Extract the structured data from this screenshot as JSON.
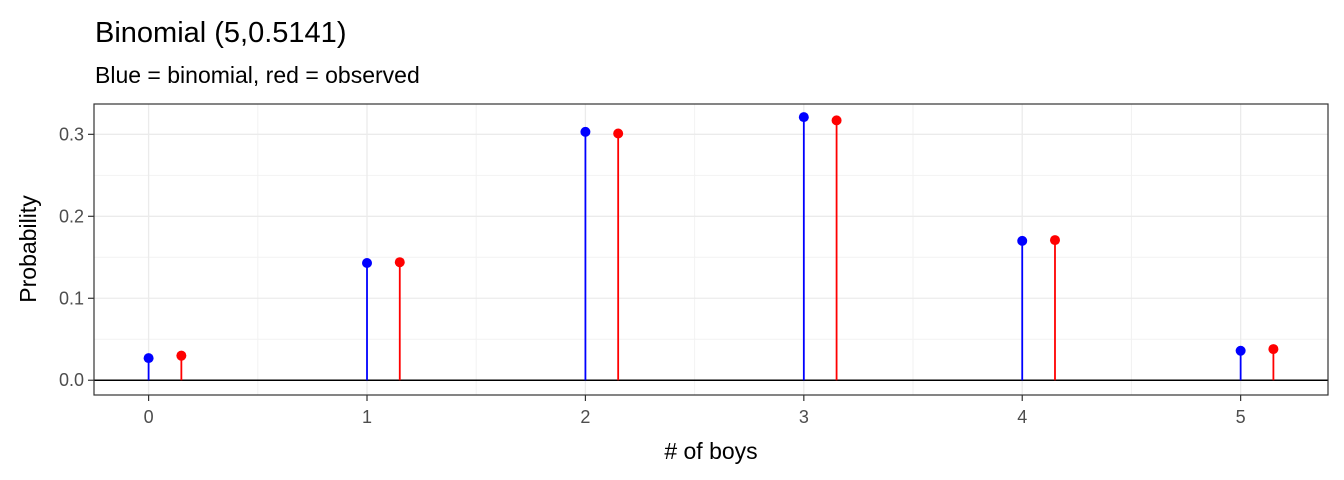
{
  "chart_data": {
    "type": "lollipop",
    "title": "Binomial (5,0.5141)",
    "subtitle": "Blue = binomial, red = observed",
    "xlabel": "# of boys",
    "ylabel": "Probability",
    "x": [
      0,
      1,
      2,
      3,
      4,
      5
    ],
    "xlim": [
      -0.25,
      5.4
    ],
    "ylim": [
      -0.018,
      0.337
    ],
    "xticks": [
      "0",
      "1",
      "2",
      "3",
      "4",
      "5"
    ],
    "yticks": [
      "0.0",
      "0.1",
      "0.2",
      "0.3"
    ],
    "ytick_values": [
      0.0,
      0.1,
      0.2,
      0.3
    ],
    "grid": true,
    "reference_line_y": 0,
    "series": [
      {
        "color": "#0000ff",
        "x_offset": 0,
        "values": [
          0.027,
          0.143,
          0.303,
          0.321,
          0.17,
          0.036
        ]
      },
      {
        "color": "#ff0000",
        "x_offset": 0.15,
        "values": [
          0.03,
          0.144,
          0.301,
          0.317,
          0.171,
          0.038
        ]
      }
    ]
  }
}
